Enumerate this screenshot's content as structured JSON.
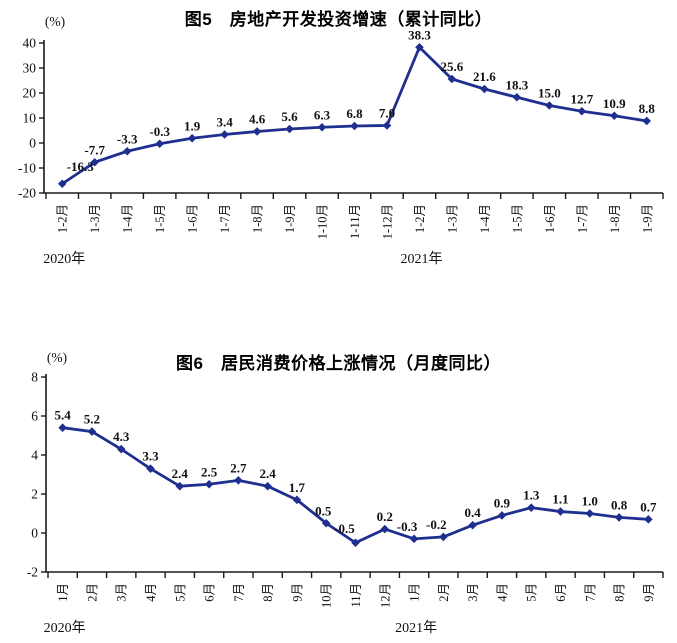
{
  "page_background": "#ffffff",
  "chart_data": [
    {
      "type": "line",
      "title": "图5　房地产开发投资增速（累计同比）",
      "unit": "(%)",
      "line_color": "#1f2f8f",
      "categories": [
        "1-2月",
        "1-3月",
        "1-4月",
        "1-5月",
        "1-6月",
        "1-7月",
        "1-8月",
        "1-9月",
        "1-10月",
        "1-11月",
        "1-12月",
        "1-2月",
        "1-3月",
        "1-4月",
        "1-5月",
        "1-6月",
        "1-7月",
        "1-8月",
        "1-9月"
      ],
      "values": [
        -16.3,
        -7.7,
        -3.3,
        -0.3,
        1.9,
        3.4,
        4.6,
        5.6,
        6.3,
        6.8,
        7.0,
        38.3,
        25.6,
        21.6,
        18.3,
        15.0,
        12.7,
        10.9,
        8.8
      ],
      "labels": [
        "-16.3",
        "-7.7",
        "-3.3",
        "-0.3",
        "1.9",
        "3.4",
        "4.6",
        "5.6",
        "6.3",
        "6.8",
        "7.0",
        "38.3",
        "25.6",
        "21.6",
        "18.3",
        "15.0",
        "12.7",
        "10.9",
        "8.8"
      ],
      "ylim": [
        -20,
        40
      ],
      "yticks": [
        40,
        30,
        20,
        10,
        0,
        -10,
        -20
      ],
      "years": [
        {
          "label": "2020年",
          "start": 0
        },
        {
          "label": "2021年",
          "start": 11
        }
      ],
      "legend": "none",
      "grid": "off"
    },
    {
      "type": "line",
      "title": "图6　居民消费价格上涨情况（月度同比）",
      "unit": "(%)",
      "line_color": "#1f2f8f",
      "categories": [
        "1月",
        "2月",
        "3月",
        "4月",
        "5月",
        "6月",
        "7月",
        "8月",
        "9月",
        "10月",
        "11月",
        "12月",
        "1月",
        "2月",
        "3月",
        "4月",
        "5月",
        "6月",
        "7月",
        "8月",
        "9月"
      ],
      "values": [
        5.4,
        5.2,
        4.3,
        3.3,
        2.4,
        2.5,
        2.7,
        2.4,
        1.7,
        0.5,
        -0.5,
        0.2,
        -0.3,
        -0.2,
        0.4,
        0.9,
        1.3,
        1.1,
        1.0,
        0.8,
        0.7
      ],
      "labels": [
        "5.4",
        "5.2",
        "4.3",
        "3.3",
        "2.4",
        "2.5",
        "2.7",
        "2.4",
        "1.7",
        "0.5",
        "-0.5",
        "0.2",
        "-0.3",
        "-0.2",
        "0.4",
        "0.9",
        "1.3",
        "1.1",
        "1.0",
        "0.8",
        "0.7"
      ],
      "ylim": [
        -2,
        8
      ],
      "yticks": [
        8,
        6,
        4,
        2,
        0,
        -2
      ],
      "years": [
        {
          "label": "2020年",
          "start": 0
        },
        {
          "label": "2021年",
          "start": 12
        }
      ],
      "legend": "none",
      "grid": "off"
    }
  ]
}
